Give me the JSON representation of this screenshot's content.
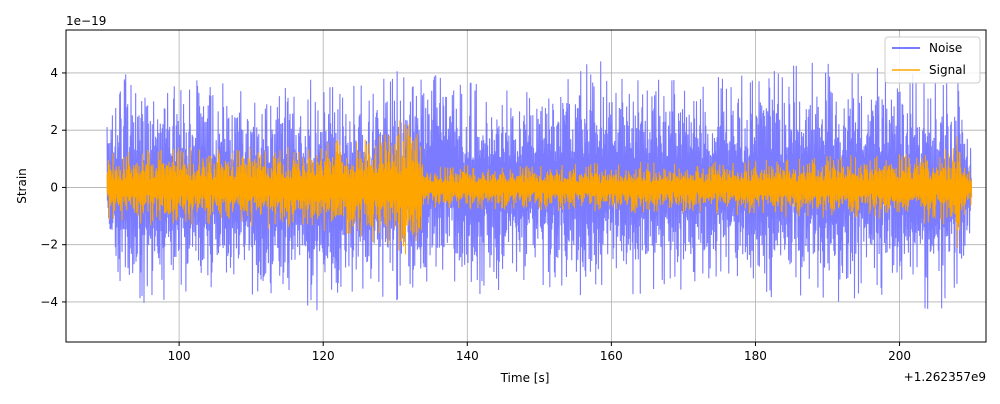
{
  "chart_data": {
    "type": "line",
    "title": "",
    "xlabel": "Time [s]",
    "ylabel": "Strain",
    "x_offset_label": "+1.262357e9",
    "y_scale_label": "1e−19",
    "xlim": [
      84.3,
      212
    ],
    "ylim": [
      -5.4,
      5.5
    ],
    "x_ticks": [
      100,
      120,
      140,
      160,
      180,
      200
    ],
    "x_tick_labels": [
      "100",
      "120",
      "140",
      "160",
      "180",
      "200"
    ],
    "y_ticks": [
      -4,
      -2,
      0,
      2,
      4
    ],
    "y_tick_labels": [
      "−4",
      "−2",
      "0",
      "2",
      "4"
    ],
    "grid": true,
    "legend_position": "top-right",
    "colors": {
      "noise": "#7b7bff",
      "signal": "#ffa500",
      "grid": "#b0b0b0"
    },
    "series": [
      {
        "name": "Noise",
        "x_range": [
          90,
          210
        ],
        "envelope": {
          "x": [
            90,
            92,
            95,
            100,
            105,
            110,
            115,
            120,
            125,
            130,
            133,
            136,
            140,
            150,
            160,
            170,
            180,
            190,
            200,
            205,
            208,
            210
          ],
          "upper": [
            3.5,
            4.2,
            3.8,
            3.7,
            3.9,
            3.6,
            3.8,
            4.0,
            3.7,
            4.1,
            3.7,
            5.0,
            3.8,
            4.0,
            4.5,
            3.8,
            4.0,
            4.5,
            4.2,
            3.7,
            4.1,
            1.4
          ],
          "lower": [
            -2.8,
            -4.8,
            -4.2,
            -3.8,
            -3.7,
            -3.9,
            -4.0,
            -4.5,
            -3.8,
            -4.0,
            -3.9,
            -3.5,
            -3.8,
            -3.6,
            -3.9,
            -3.7,
            -3.8,
            -4.1,
            -3.9,
            -4.6,
            -3.4,
            -1.4
          ]
        }
      },
      {
        "name": "Signal",
        "x_range": [
          90,
          210
        ],
        "envelope": {
          "x": [
            90,
            92,
            95,
            100,
            105,
            110,
            115,
            120,
            125,
            128,
            130,
            132,
            133,
            134,
            140,
            150,
            160,
            170,
            180,
            190,
            200,
            205,
            207.5,
            208,
            208.5,
            210
          ],
          "upper": [
            1.2,
            1.3,
            1.3,
            1.4,
            1.4,
            1.4,
            1.5,
            1.6,
            1.8,
            2.0,
            2.3,
            2.6,
            2.9,
            0.8,
            0.8,
            0.8,
            0.9,
            0.9,
            1.0,
            1.1,
            1.2,
            1.3,
            1.4,
            2.5,
            1.2,
            0.6
          ],
          "lower": [
            -1.2,
            -1.3,
            -1.3,
            -1.4,
            -1.4,
            -1.4,
            -1.5,
            -1.6,
            -1.8,
            -2.0,
            -2.3,
            -2.6,
            -2.8,
            -0.8,
            -0.8,
            -0.8,
            -0.9,
            -0.9,
            -1.0,
            -1.1,
            -1.2,
            -1.3,
            -1.4,
            -3.7,
            -1.2,
            -0.6
          ]
        }
      }
    ]
  }
}
